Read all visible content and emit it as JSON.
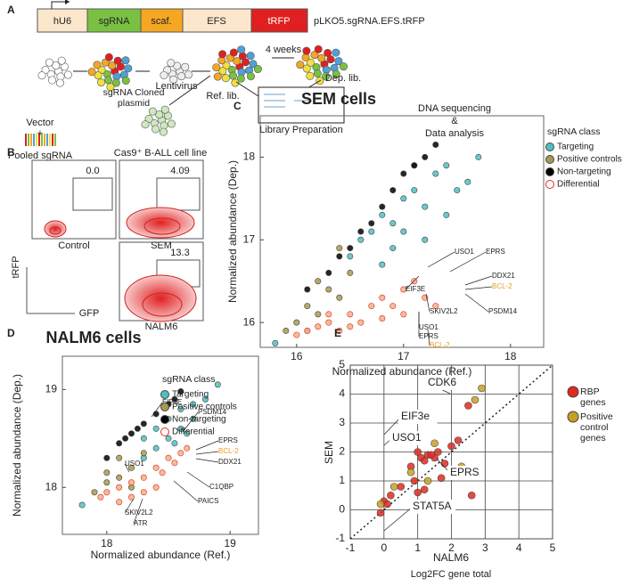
{
  "schematic": {
    "panel_label": "A",
    "construct": {
      "parts": [
        "hU6",
        "sgRNA",
        "scaf.",
        "EFS",
        "tRFP"
      ],
      "name": "pLKO5.sgRNA.EFS.tRFP"
    },
    "steps": {
      "vector": "Vector",
      "plus": "+",
      "pooled": "Pooled sgRNA",
      "plasmid": "sgRNA Cloned plasmid",
      "lentivirus": "Lentivirus",
      "cells": "Cas9⁺ B-ALL cell line",
      "ref": "Ref. lib.",
      "time": "4 weeks",
      "dep": "Dep. lib.",
      "library": "Library Preparation",
      "seq": [
        "DNA sequencing",
        "&",
        "Data analysis"
      ]
    }
  },
  "flow": {
    "panel_label": "B",
    "plots": [
      {
        "name": "Control",
        "gate": "0.0"
      },
      {
        "name": "SEM",
        "gate": "4.09"
      },
      {
        "name": "NALM6",
        "gate": "13.3"
      }
    ],
    "y_axis": "tRFP",
    "x_axis": "GFP"
  },
  "chart_data": [
    {
      "type": "scatter",
      "panel_label": "C",
      "title": "SEM cells",
      "x_label": "Normalized abundance (Ref.)",
      "y_label": "Normalized abundance (Dep.)",
      "xlim": [
        15.66,
        18.31
      ],
      "ylim": [
        15.7,
        18.5
      ],
      "xticks": [
        16,
        17,
        18
      ],
      "yticks": [
        16,
        17,
        18
      ],
      "grid": false,
      "legend_title": "sgRNA class",
      "series": [
        {
          "name": "Targeting",
          "color": "#4fc1bf",
          "x": [
            16.5,
            16.6,
            16.7,
            16.8,
            16.9,
            17.0,
            17.1,
            17.2,
            17.3,
            17.4,
            17.5,
            17.6,
            17.7,
            16.9,
            17.0,
            17.2,
            17.4,
            16.8,
            17.1,
            15.8
          ],
          "y": [
            16.8,
            17.0,
            17.1,
            17.3,
            17.2,
            17.5,
            17.6,
            17.4,
            17.8,
            17.9,
            17.6,
            17.7,
            18.0,
            16.9,
            17.1,
            17.0,
            17.3,
            16.7,
            17.9,
            15.75
          ]
        },
        {
          "name": "Positive controls",
          "color": "#a89a4a",
          "x": [
            15.9,
            16.0,
            16.1,
            16.2,
            16.3,
            16.4,
            16.5,
            16.1,
            16.2,
            16.4
          ],
          "y": [
            15.9,
            16.0,
            16.2,
            16.1,
            16.4,
            16.3,
            16.6,
            15.9,
            16.5,
            16.9
          ]
        },
        {
          "name": "Non-targeting",
          "color": "#000000",
          "x": [
            16.1,
            16.3,
            16.5,
            16.6,
            16.7,
            16.8,
            16.9,
            17.0,
            17.1,
            17.2,
            17.3,
            16.4
          ],
          "y": [
            16.4,
            16.6,
            16.9,
            17.1,
            17.2,
            17.4,
            17.6,
            17.8,
            17.9,
            18.0,
            18.15,
            16.8
          ]
        },
        {
          "name": "Differential",
          "color": "#f0b08a",
          "edgecolor": "#e03020",
          "x": [
            16.0,
            16.1,
            16.2,
            16.3,
            16.4,
            16.5,
            16.6,
            16.7,
            16.8,
            16.9,
            17.0,
            17.1,
            17.2,
            17.3,
            16.5,
            16.8,
            17.0,
            16.3
          ],
          "y": [
            15.85,
            15.9,
            15.95,
            16.0,
            15.9,
            16.1,
            16.0,
            16.2,
            16.3,
            16.2,
            16.4,
            16.5,
            16.3,
            16.2,
            15.95,
            16.05,
            16.1,
            16.1
          ]
        }
      ],
      "annotations": [
        {
          "text": "USO1"
        },
        {
          "text": "EPRS"
        },
        {
          "text": "EIF3E"
        },
        {
          "text": "DDX21"
        },
        {
          "text": "BCL-2",
          "color": "#e8a020"
        },
        {
          "text": "PSDM14"
        },
        {
          "text": "SKIV2L2"
        },
        {
          "text": "USO1"
        },
        {
          "text": "EPRS"
        },
        {
          "text": "BCL-2",
          "color": "#e8a020"
        }
      ]
    },
    {
      "type": "scatter",
      "panel_label": "D",
      "title": "NALM6 cells",
      "x_label": "Normalized abundance (Ref.)",
      "y_label": "Normalized abundance (Dep.)",
      "xlim": [
        17.64,
        19.23
      ],
      "ylim": [
        17.52,
        19.34
      ],
      "xticks": [
        18,
        19
      ],
      "yticks": [
        18,
        19
      ],
      "grid": false,
      "legend_title": "sgRNA class",
      "series": [
        {
          "name": "Targeting",
          "color": "#4fc1bf",
          "x": [
            18.3,
            18.4,
            18.5,
            18.6,
            18.7,
            18.8,
            18.9,
            18.5,
            18.6,
            18.4,
            18.7,
            18.3,
            18.55,
            18.65,
            17.8
          ],
          "y": [
            18.5,
            18.6,
            18.7,
            18.8,
            18.85,
            18.9,
            19.05,
            18.5,
            18.6,
            18.4,
            18.7,
            18.3,
            18.45,
            18.55,
            17.82
          ]
        },
        {
          "name": "Positive controls",
          "color": "#a89a4a",
          "x": [
            17.9,
            18.0,
            18.1,
            18.2,
            18.0,
            18.1,
            18.3,
            18.2
          ],
          "y": [
            17.95,
            18.05,
            18.1,
            18.2,
            18.15,
            18.3,
            18.35,
            18.0
          ]
        },
        {
          "name": "Non-targeting",
          "color": "#000000",
          "x": [
            18.0,
            18.1,
            18.2,
            18.3,
            18.4,
            18.5,
            18.55,
            18.6,
            18.15,
            18.25
          ],
          "y": [
            18.3,
            18.45,
            18.55,
            18.65,
            18.75,
            18.85,
            18.9,
            18.98,
            18.5,
            18.6
          ]
        },
        {
          "name": "Differential",
          "color": "#f0b08a",
          "edgecolor": "#e03020",
          "x": [
            17.95,
            18.0,
            18.1,
            18.2,
            18.3,
            18.4,
            18.5,
            18.6,
            18.65,
            18.3,
            18.45,
            18.2,
            18.1,
            18.4,
            18.55
          ],
          "y": [
            17.9,
            17.95,
            18.0,
            18.05,
            18.1,
            18.2,
            18.3,
            18.35,
            18.4,
            17.95,
            18.15,
            17.9,
            17.85,
            18.0,
            18.25
          ]
        }
      ],
      "annotations": [
        {
          "text": "EIF3E"
        },
        {
          "text": "PSDM14"
        },
        {
          "text": "EPRS"
        },
        {
          "text": "BCL-2",
          "color": "#e8a020"
        },
        {
          "text": "DDX21"
        },
        {
          "text": "USO1"
        },
        {
          "text": "C1QBP"
        },
        {
          "text": "PAICS"
        },
        {
          "text": "SKIV2L2"
        },
        {
          "text": "ATR"
        }
      ]
    },
    {
      "type": "scatter",
      "panel_label": "E",
      "x_label": "NALM6",
      "x_sublabel": "Log2FC gene total",
      "y_label": "SEM",
      "xlim": [
        -1,
        5
      ],
      "ylim": [
        -1,
        5
      ],
      "xticks": [
        -1,
        0,
        1,
        2,
        3,
        4,
        5
      ],
      "yticks": [
        -1,
        0,
        1,
        2,
        3,
        4,
        5
      ],
      "grid": true,
      "identity_line": true,
      "series": [
        {
          "name": "RBP genes",
          "color": "#e02a20",
          "x": [
            1,
            1.1,
            1.2,
            1.3,
            1.5,
            1.6,
            1.8,
            2.0,
            2.2,
            0.8,
            0.9,
            1.4,
            0,
            0.1,
            -0.1,
            0.2,
            1.0,
            1.7,
            2.5,
            2.6,
            0.5,
            1.2
          ],
          "y": [
            2.0,
            1.8,
            1.7,
            1.9,
            1.8,
            2.0,
            1.6,
            2.2,
            2.4,
            1.5,
            1.0,
            1.9,
            0.3,
            0.2,
            -0.1,
            0.5,
            0.6,
            1.1,
            3.6,
            0.5,
            0.8,
            0.7
          ]
        },
        {
          "name": "Positive control genes",
          "color": "#c8a020",
          "x": [
            2.9,
            2.7,
            1.5,
            0.8,
            -0.1,
            0.3,
            1.3,
            2.3
          ],
          "y": [
            4.2,
            3.8,
            2.3,
            1.3,
            0.2,
            0.8,
            1.0,
            1.5
          ]
        }
      ],
      "annotations": [
        {
          "text": "CDK6"
        },
        {
          "text": "EIF3e"
        },
        {
          "text": "USO1"
        },
        {
          "text": "EPRS"
        },
        {
          "text": "STAT5A"
        }
      ]
    }
  ]
}
